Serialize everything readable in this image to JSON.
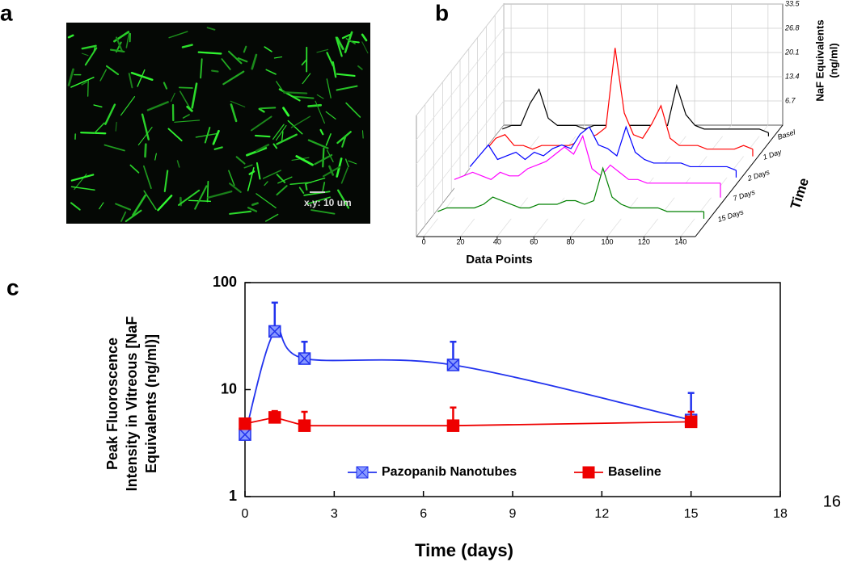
{
  "panel_labels": [
    "a",
    "b",
    "c"
  ],
  "image": {
    "scale_label": "x,y: 10 um"
  },
  "page_number": "16",
  "chart_data": [
    {
      "type": "waterfall3d",
      "x_label": "Data Points",
      "z_label": [
        "NaF Equivalents",
        "(ng/ml)"
      ],
      "depth_label": "Time",
      "xlim": [
        -4,
        148
      ],
      "xticks": [
        0,
        20,
        40,
        60,
        80,
        100,
        120,
        140
      ],
      "zlim": [
        0,
        33.5
      ],
      "zticks": [
        6.7,
        13.4,
        20.1,
        26.8,
        33.5
      ],
      "x": [
        0,
        5,
        10,
        15,
        20,
        25,
        30,
        35,
        40,
        45,
        50,
        55,
        60,
        65,
        70,
        75,
        80,
        85,
        90,
        95,
        100,
        105,
        110,
        115,
        120,
        125,
        130,
        135,
        140,
        145
      ],
      "series": [
        {
          "name": "Basel",
          "color": "#000000",
          "values": [
            2,
            3,
            3,
            9,
            13,
            5,
            3,
            3,
            3,
            2,
            3,
            3,
            3,
            2,
            3,
            3,
            3,
            3,
            3,
            14,
            6,
            3,
            2,
            2,
            2,
            2,
            2,
            2,
            2,
            1
          ]
        },
        {
          "name": "1 Day",
          "color": "#ff0000",
          "values": [
            2,
            5,
            6,
            3,
            3,
            2,
            3,
            3,
            3,
            3,
            4,
            5,
            6,
            8,
            30,
            12,
            6,
            5,
            9,
            14,
            5,
            3,
            3,
            3,
            2,
            2,
            2,
            2,
            3,
            2
          ]
        },
        {
          "name": "2 Days",
          "color": "#0000ff",
          "values": [
            3,
            6,
            9,
            5,
            6,
            7,
            5,
            7,
            6,
            8,
            9,
            8,
            12,
            14,
            9,
            8,
            6,
            14,
            7,
            5,
            4,
            4,
            4,
            4,
            3,
            3,
            3,
            3,
            3,
            2
          ]
        },
        {
          "name": "7 Days",
          "color": "#ff00ff",
          "values": [
            5,
            6,
            7,
            6,
            5,
            7,
            6,
            6,
            8,
            9,
            10,
            12,
            14,
            12,
            17,
            8,
            6,
            9,
            7,
            5,
            5,
            4,
            4,
            4,
            4,
            4,
            4,
            4,
            4,
            4
          ]
        },
        {
          "name": "15 Days",
          "color": "#008000",
          "values": [
            2,
            3,
            3,
            3,
            3,
            4,
            6,
            5,
            4,
            3,
            3,
            4,
            4,
            4,
            5,
            5,
            4,
            5,
            14,
            6,
            4,
            3,
            3,
            3,
            3,
            2,
            2,
            2,
            2,
            2
          ]
        }
      ]
    },
    {
      "type": "line",
      "x_label": "Time (days)",
      "y_label": [
        "Peak Fluoroscence",
        "Intensity in Vitreous [NaF",
        "Equivalents (ng/ml)]"
      ],
      "xlim": [
        0,
        18
      ],
      "xticks": [
        0,
        3,
        6,
        9,
        12,
        15,
        18
      ],
      "ylim": [
        1,
        100
      ],
      "yticks": [
        1,
        10,
        100
      ],
      "yscale": "log",
      "grid": false,
      "legend": "bottom",
      "x": [
        0,
        1,
        2,
        7,
        15
      ],
      "series": [
        {
          "name": "Pazopanib Nanotubes",
          "color": "#2233ee",
          "marker": "crossed-square",
          "smooth": true,
          "values": [
            3.8,
            35,
            19.5,
            17,
            5.2
          ],
          "errors": [
            null,
            30,
            8.5,
            11,
            4.1
          ]
        },
        {
          "name": "Baseline",
          "color": "#ee0000",
          "marker": "square",
          "smooth": false,
          "values": [
            4.8,
            5.5,
            4.6,
            4.6,
            5.0
          ],
          "errors": [
            null,
            0.8,
            1.6,
            2.2,
            1.2
          ]
        }
      ]
    }
  ]
}
